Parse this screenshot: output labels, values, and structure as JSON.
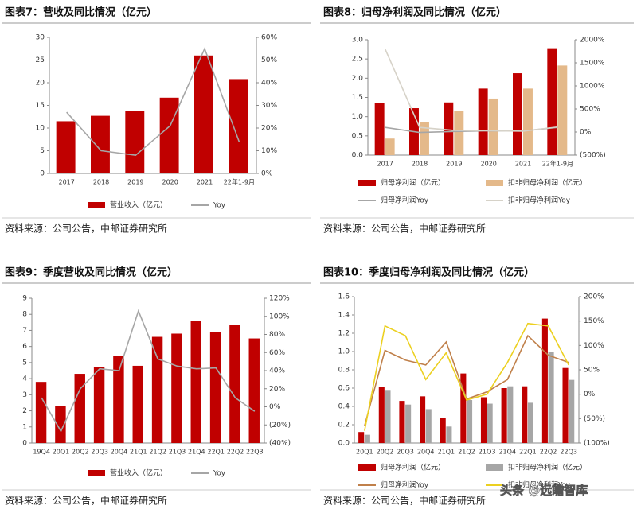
{
  "chart_data": [
    {
      "type": "bar",
      "title": "图表7：营收及同比情况（亿元）",
      "source": "资料来源：公司公告，中邮证券研究所",
      "categories": [
        "2017",
        "2018",
        "2019",
        "2020",
        "2021",
        "22年1-9月"
      ],
      "series": [
        {
          "name": "营业收入（亿元）",
          "color": "#c00000",
          "values": [
            11.5,
            12.7,
            13.8,
            16.7,
            26.0,
            20.8
          ]
        },
        {
          "name": "Yoy",
          "type": "line",
          "axis": "y2",
          "color": "#a6a6a6",
          "values": [
            27,
            10,
            8,
            21,
            55,
            14
          ]
        }
      ],
      "ylim": [
        0,
        30
      ],
      "yticks": [
        0,
        5,
        10,
        15,
        20,
        25,
        30
      ],
      "y2lim": [
        0,
        60
      ],
      "y2ticks": [
        {
          "value": 0,
          "label": "0%"
        },
        {
          "value": 10,
          "label": "10%"
        },
        {
          "value": 20,
          "label": "20%"
        },
        {
          "value": 30,
          "label": "30%"
        },
        {
          "value": 40,
          "label": "40%"
        },
        {
          "value": 50,
          "label": "50%"
        },
        {
          "value": 60,
          "label": "60%"
        }
      ]
    },
    {
      "type": "bar",
      "title": "图表8：归母净利润及同比情况（亿元）",
      "source": "资料来源：公司公告，中邮证券研究所",
      "categories": [
        "2017",
        "2018",
        "2019",
        "2020",
        "2021",
        "22年1-9月"
      ],
      "series": [
        {
          "name": "归母净利润（亿元）",
          "color": "#c00000",
          "values": [
            1.35,
            1.22,
            1.37,
            1.73,
            2.13,
            2.78
          ]
        },
        {
          "name": "扣非归母净利润（亿元）",
          "color": "#e4b98a",
          "values": [
            0.43,
            0.85,
            1.15,
            1.47,
            1.73,
            2.33
          ]
        },
        {
          "name": "归母净利润Yoy",
          "type": "line",
          "axis": "y2",
          "color": "#a6a6a6",
          "values": [
            100,
            -10,
            12,
            26,
            23,
            100
          ]
        },
        {
          "name": "扣非归母净利润Yoy",
          "type": "line",
          "axis": "y2",
          "color": "#d6d2c8",
          "values": [
            1800,
            100,
            35,
            28,
            18,
            110
          ]
        }
      ],
      "ylim": [
        0,
        3
      ],
      "yticks": [
        {
          "value": 0,
          "label": "0.0"
        },
        0.5,
        {
          "value": 1,
          "label": "1.0"
        },
        1.5,
        {
          "value": 2,
          "label": "2.0"
        },
        2.5,
        {
          "value": 3,
          "label": "3.0"
        }
      ],
      "y2lim": [
        -500,
        2000
      ],
      "y2ticks": [
        {
          "value": -500,
          "label": "(500%)"
        },
        {
          "value": 0,
          "label": "0%"
        },
        {
          "value": 500,
          "label": "500%"
        },
        {
          "value": 1000,
          "label": "1000%"
        },
        {
          "value": 1500,
          "label": "1500%"
        },
        {
          "value": 2000,
          "label": "2000%"
        }
      ]
    },
    {
      "type": "bar",
      "title": "图表9：季度营收及同比情况（亿元）",
      "source": "资料来源：公司公告，中邮证券研究所",
      "categories": [
        "19Q4",
        "20Q1",
        "20Q2",
        "20Q3",
        "20Q4",
        "21Q1",
        "21Q2",
        "21Q3",
        "21Q4",
        "22Q1",
        "22Q2",
        "22Q3"
      ],
      "series": [
        {
          "name": "营业收入（亿元）",
          "color": "#c00000",
          "values": [
            3.8,
            2.3,
            4.3,
            4.7,
            5.4,
            4.8,
            6.6,
            6.8,
            7.6,
            6.9,
            7.35,
            6.5
          ]
        },
        {
          "name": "Yoy",
          "type": "line",
          "axis": "y2",
          "color": "#a6a6a6",
          "values": [
            10,
            -27,
            20,
            42,
            40,
            106,
            53,
            45,
            42,
            43,
            10,
            -5
          ]
        }
      ],
      "ylim": [
        0,
        9
      ],
      "yticks": [
        0,
        1,
        2,
        3,
        4,
        5,
        6,
        7,
        8,
        9
      ],
      "y2lim": [
        -40,
        120
      ],
      "y2ticks": [
        {
          "value": -40,
          "label": "(40%)"
        },
        {
          "value": -20,
          "label": "(20%)"
        },
        {
          "value": 0,
          "label": "0%"
        },
        {
          "value": 20,
          "label": "20%"
        },
        {
          "value": 40,
          "label": "40%"
        },
        {
          "value": 60,
          "label": "60%"
        },
        {
          "value": 80,
          "label": "80%"
        },
        {
          "value": 100,
          "label": "100%"
        },
        {
          "value": 120,
          "label": "120%"
        }
      ]
    },
    {
      "type": "bar",
      "title": "图表10：季度归母净利润及同比情况（亿元）",
      "source": "资料来源：公司公告，中邮证券研究所",
      "categories": [
        "20Q1",
        "20Q2",
        "20Q3",
        "20Q4",
        "21Q1",
        "21Q2",
        "21Q3",
        "21Q4",
        "22Q1",
        "22Q2",
        "22Q3"
      ],
      "series": [
        {
          "name": "归母净利润（亿元）",
          "color": "#c00000",
          "values": [
            0.12,
            0.61,
            0.46,
            0.51,
            0.27,
            0.76,
            0.5,
            0.6,
            0.62,
            1.36,
            0.82
          ]
        },
        {
          "name": "扣非归母净利润（亿元）",
          "color": "#a6a6a6",
          "values": [
            0.09,
            0.58,
            0.42,
            0.37,
            0.18,
            0.47,
            0.43,
            0.62,
            0.44,
            1.0,
            0.69
          ]
        },
        {
          "name": "归母净利润Yoy",
          "type": "line",
          "axis": "y2",
          "color": "#c0804a",
          "values": [
            -65,
            90,
            70,
            60,
            107,
            -10,
            5,
            30,
            120,
            80,
            65
          ]
        },
        {
          "name": "扣非归母净利润Yoy",
          "type": "line",
          "axis": "y2",
          "color": "#ecd020",
          "values": [
            -75,
            140,
            120,
            30,
            85,
            -12,
            0,
            65,
            145,
            140,
            60
          ]
        }
      ],
      "ylim": [
        0,
        1.6
      ],
      "yticks": [
        {
          "value": 0,
          "label": "0.0"
        },
        0.2,
        0.4,
        0.6,
        0.8,
        {
          "value": 1,
          "label": "1.0"
        },
        1.2,
        1.4,
        1.6
      ],
      "y2lim": [
        -100,
        200
      ],
      "y2ticks": [
        {
          "value": -100,
          "label": "(100%)"
        },
        {
          "value": -50,
          "label": "(50%)"
        },
        {
          "value": 0,
          "label": "0%"
        },
        {
          "value": 50,
          "label": "50%"
        },
        {
          "value": 100,
          "label": "100%"
        },
        {
          "value": 150,
          "label": "150%"
        },
        {
          "value": 200,
          "label": "200%"
        }
      ]
    }
  ],
  "watermark": "头条 @远瞻智库"
}
